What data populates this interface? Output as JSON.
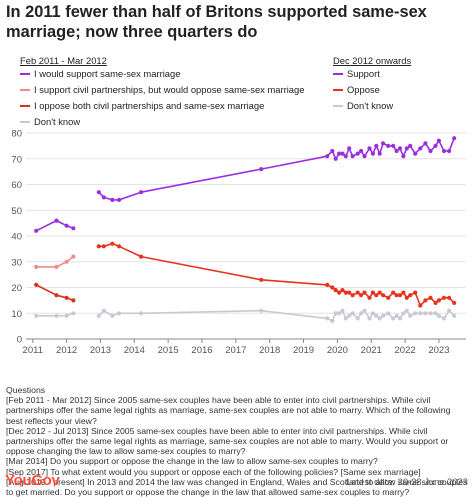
{
  "title": "In 2011 fewer than half of Britons supported same-sex marriage; now three quarters do",
  "legend_left": {
    "heading": "Feb 2011 - Mar 2012",
    "items": [
      {
        "label": "I would support same-sex marriage",
        "color": "#9b2fe0"
      },
      {
        "label": "I support civil partnerships, but would oppose same-sex marriage",
        "color": "#f28b86"
      },
      {
        "label": "I oppose both civil partnerships and same-sex marriage",
        "color": "#d7301f"
      },
      {
        "label": "Don't know",
        "color": "#c9c9d6"
      }
    ]
  },
  "legend_right": {
    "heading": "Dec 2012 onwards",
    "items": [
      {
        "label": "Support",
        "color": "#9b2fe0"
      },
      {
        "label": "Oppose",
        "color": "#e8321e"
      },
      {
        "label": "Don't know",
        "color": "#c9c9d6"
      }
    ]
  },
  "chart_data": {
    "type": "line",
    "title": "In 2011 fewer than half of Britons supported same-sex marriage; now three quarters do",
    "xlabel": "",
    "ylabel": "",
    "xlim": [
      2010.8,
      2023.8
    ],
    "ylim": [
      0,
      80
    ],
    "x_ticks": [
      2011,
      2012,
      2013,
      2014,
      2015,
      2016,
      2017,
      2018,
      2019,
      2020,
      2021,
      2022,
      2023
    ],
    "y_ticks": [
      0,
      10,
      20,
      30,
      40,
      50,
      60,
      70,
      80
    ],
    "grid": true,
    "series": [
      {
        "name": "I would support same-sex marriage",
        "color": "#9b2fe0",
        "x": [
          2011.1,
          2011.7,
          2012.0,
          2012.2
        ],
        "y": [
          42,
          46,
          44,
          43
        ]
      },
      {
        "name": "I support civil partnerships, but would oppose same-sex marriage",
        "color": "#f28b86",
        "x": [
          2011.1,
          2011.7,
          2012.0,
          2012.2
        ],
        "y": [
          28,
          28,
          30,
          32
        ]
      },
      {
        "name": "I oppose both civil partnerships and same-sex marriage",
        "color": "#d7301f",
        "x": [
          2011.1,
          2011.7,
          2012.0,
          2012.2
        ],
        "y": [
          21,
          17,
          16,
          15
        ]
      },
      {
        "name": "Don't know",
        "color": "#c9c9d6",
        "x": [
          2011.1,
          2011.7,
          2012.0,
          2012.2
        ],
        "y": [
          9,
          9,
          9,
          10
        ]
      },
      {
        "name": "Support",
        "color": "#9b2fe0",
        "x": [
          2012.95,
          2013.1,
          2013.35,
          2013.55,
          2014.2,
          2017.75,
          2019.7,
          2019.85,
          2019.95,
          2020.05,
          2020.15,
          2020.25,
          2020.35,
          2020.45,
          2020.6,
          2020.7,
          2020.8,
          2020.95,
          2021.05,
          2021.15,
          2021.25,
          2021.35,
          2021.5,
          2021.65,
          2021.75,
          2021.85,
          2021.95,
          2022.05,
          2022.15,
          2022.3,
          2022.45,
          2022.6,
          2022.75,
          2022.9,
          2023.0,
          2023.15,
          2023.3,
          2023.45
        ],
        "y": [
          57,
          55,
          54,
          54,
          57,
          66,
          71,
          73,
          70,
          72,
          72,
          71,
          74,
          71,
          72,
          73,
          71,
          74,
          72,
          75,
          72,
          76,
          75,
          75,
          73,
          74,
          71,
          74,
          75,
          72,
          74,
          76,
          73,
          75,
          77,
          73,
          73,
          78
        ]
      },
      {
        "name": "Oppose",
        "color": "#e8321e",
        "x": [
          2012.95,
          2013.1,
          2013.35,
          2013.55,
          2014.2,
          2017.75,
          2019.7,
          2019.85,
          2019.95,
          2020.05,
          2020.15,
          2020.25,
          2020.35,
          2020.45,
          2020.6,
          2020.7,
          2020.8,
          2020.95,
          2021.05,
          2021.15,
          2021.25,
          2021.35,
          2021.5,
          2021.65,
          2021.75,
          2021.85,
          2021.95,
          2022.05,
          2022.15,
          2022.3,
          2022.45,
          2022.6,
          2022.75,
          2022.9,
          2023.0,
          2023.15,
          2023.3,
          2023.45
        ],
        "y": [
          36,
          36,
          37,
          36,
          32,
          23,
          21,
          20,
          19,
          18,
          19,
          18,
          18,
          17,
          18,
          17,
          18,
          16,
          18,
          17,
          18,
          17,
          16,
          18,
          17,
          17,
          18,
          16,
          17,
          18,
          13,
          15,
          16,
          14,
          15,
          16,
          16,
          14
        ]
      },
      {
        "name": "Don't know",
        "color": "#c9c9d6",
        "x": [
          2012.95,
          2013.1,
          2013.35,
          2013.55,
          2014.2,
          2017.75,
          2019.7,
          2019.85,
          2019.95,
          2020.05,
          2020.15,
          2020.25,
          2020.35,
          2020.45,
          2020.6,
          2020.7,
          2020.8,
          2020.95,
          2021.05,
          2021.15,
          2021.25,
          2021.35,
          2021.5,
          2021.65,
          2021.75,
          2021.85,
          2021.95,
          2022.05,
          2022.15,
          2022.3,
          2022.45,
          2022.6,
          2022.75,
          2022.9,
          2023.0,
          2023.15,
          2023.3,
          2023.45
        ],
        "y": [
          9,
          11,
          9,
          10,
          10,
          11,
          8,
          7,
          10,
          10,
          11,
          8,
          9,
          10,
          8,
          10,
          11,
          8,
          10,
          9,
          8,
          9,
          10,
          8,
          9,
          8,
          10,
          11,
          9,
          10,
          10,
          10,
          10,
          10,
          9,
          8,
          11,
          9
        ]
      }
    ]
  },
  "questions": {
    "heading": "Questions",
    "lines": [
      "[Feb 2011 - Mar 2012] Since 2005 same-sex couples have been able to enter into civil partnerships. While civil partnerships offer the same legal rights as marriage, same-sex couples are not able to marry. Which of the following best reflects your view?",
      "[Dec 2012 - Jul 2013] Since 2005 same-sex couples have been able to enter into civil partnerships. While civil partnerships offer the same legal rights as marriage, same-sex couples are not able to marry. Would you support or oppose changing the law to allow same-sex couples to marry?",
      "[Mar 2014] Do you support or oppose the change in the law to allow same-sex couples to marry?",
      "[Sep 2017] To what extent would you support or oppose each of the following policies? [Same sex marriage]",
      "[Aug 2019 - present] In 2013 and 2014 the law was changed in England, Wales and Scotland to allow same sex couples to get married. Do you support or oppose the change in the law that allowed same-sex couples to marry?"
    ]
  },
  "footer": {
    "logo": "YouGov",
    "date": "Latest data: 20-28 June 2023"
  }
}
